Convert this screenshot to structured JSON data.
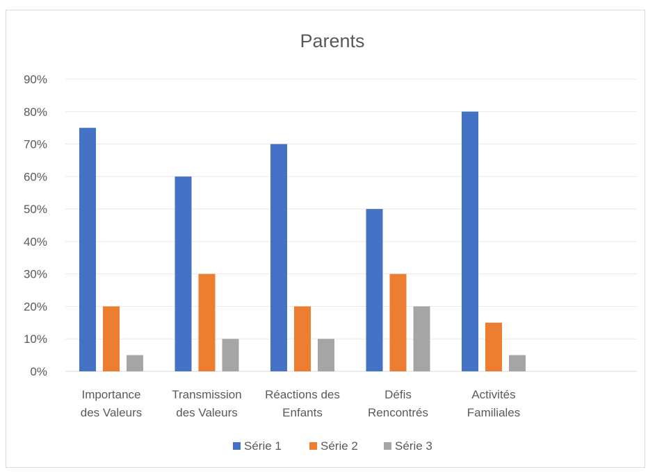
{
  "chart_data": {
    "type": "bar",
    "title": "Parents",
    "categories": [
      [
        "Importance",
        "des Valeurs"
      ],
      [
        "Transmission",
        "des Valeurs"
      ],
      [
        "Réactions des",
        "Enfants"
      ],
      [
        "Défis",
        "Rencontrés"
      ],
      [
        "Activités",
        "Familiales"
      ]
    ],
    "series": [
      {
        "name": "Série 1",
        "color": "#4472c4",
        "values": [
          75,
          60,
          70,
          50,
          80
        ]
      },
      {
        "name": "Série 2",
        "color": "#ed7d31",
        "values": [
          20,
          30,
          20,
          30,
          15
        ]
      },
      {
        "name": "Série 3",
        "color": "#a5a5a5",
        "values": [
          5,
          10,
          10,
          20,
          5
        ]
      }
    ],
    "ylim": [
      0,
      90
    ],
    "yticks": [
      "0%",
      "10%",
      "20%",
      "30%",
      "40%",
      "50%",
      "60%",
      "70%",
      "80%",
      "90%"
    ],
    "grid": true,
    "legend": "bottom"
  }
}
